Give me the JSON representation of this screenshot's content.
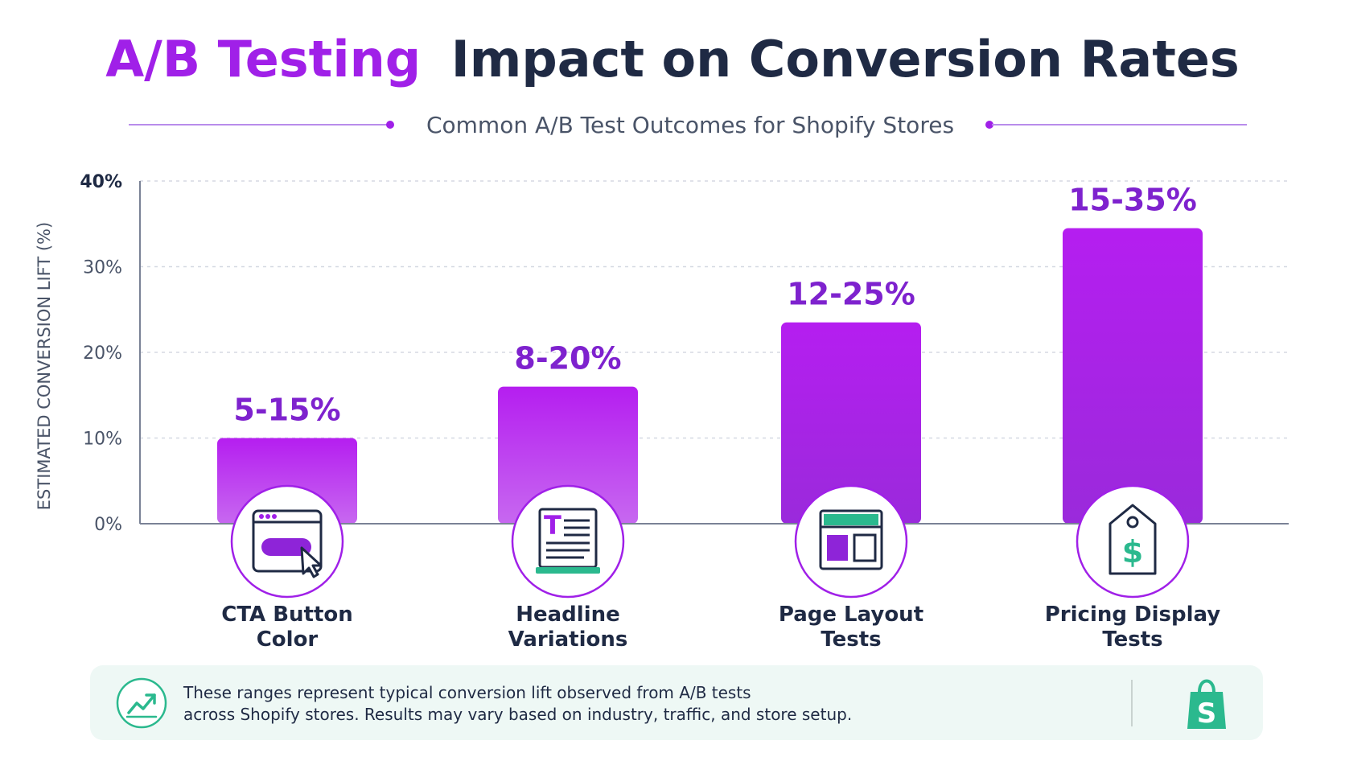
{
  "header": {
    "title_highlight": "A/B Testing",
    "title_rest": "Impact on Conversion Rates",
    "subtitle": "Common A/B Test Outcomes for Shopify Stores"
  },
  "colors": {
    "accent": "#A020E8",
    "accent_dark": "#7E22CE",
    "bar_top": "#B51EF0",
    "bar_bottom": "#8E24D8",
    "title_dark": "#1F2A44",
    "teal": "#2BB98E",
    "footer_bg": "#EEF8F5"
  },
  "chart_data": {
    "type": "bar",
    "categories": [
      "CTA Button Color",
      "Headline Variations",
      "Page Layout Tests",
      "Pricing Display Tests"
    ],
    "category_lines": [
      [
        "CTA Button",
        "Color"
      ],
      [
        "Headline",
        "Variations"
      ],
      [
        "Page Layout",
        "Tests"
      ],
      [
        "Pricing Display",
        "Tests"
      ]
    ],
    "values": [
      10,
      16,
      23.5,
      34.5
    ],
    "data_labels": [
      "5-15%",
      "8-20%",
      "12-25%",
      "15-35%"
    ],
    "category_icons": [
      "cursor-click-icon",
      "headline-text-icon",
      "page-layout-icon",
      "price-tag-icon"
    ],
    "ylabel": "ESTIMATED CONVERSION LIFT (%)",
    "ylim": [
      0,
      40
    ],
    "yticks": [
      0,
      10,
      20,
      30,
      40
    ],
    "ytick_labels": [
      "0%",
      "10%",
      "20%",
      "30%",
      "40%"
    ],
    "grid": true
  },
  "footer": {
    "icon": "trend-up-icon",
    "line1": "These ranges represent typical conversion lift observed from A/B tests",
    "line2": "across Shopify stores. Results may vary based on industry, traffic, and store setup.",
    "logo": "shopify-bag-icon"
  }
}
